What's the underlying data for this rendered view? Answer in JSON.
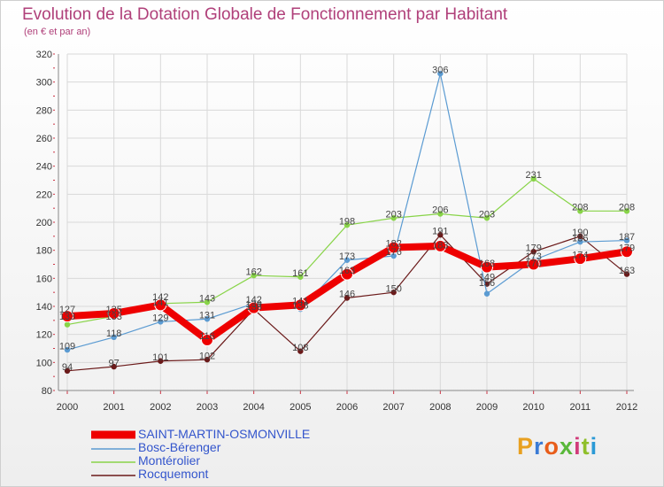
{
  "header": {
    "title": "Evolution de la Dotation Globale de Fonctionnement par Habitant",
    "subtitle": "(en € et par an)"
  },
  "brand": {
    "text": "Proxiti",
    "letter_colors": [
      "#e8a020",
      "#3a7bd5",
      "#e85d1a",
      "#59b83a",
      "#d13b7a",
      "#8fbf2a",
      "#2b9ad6"
    ]
  },
  "chart_data": {
    "type": "line",
    "x": [
      "2000",
      "2001",
      "2002",
      "2003",
      "2004",
      "2005",
      "2006",
      "2007",
      "2008",
      "2009",
      "2010",
      "2011",
      "2012"
    ],
    "ylim": [
      80,
      320
    ],
    "yticks": [
      "80",
      "100",
      "120",
      "140",
      "160",
      "180",
      "200",
      "220",
      "240",
      "260",
      "280",
      "300",
      "320"
    ],
    "grid": true,
    "series": [
      {
        "name": "Rocquemont",
        "color": "#6b1a1a",
        "width": 1.2,
        "marker": true,
        "values": [
          94,
          97,
          101,
          102,
          138,
          108,
          146,
          150,
          191,
          156,
          179,
          190,
          163
        ]
      },
      {
        "name": "Montérolier",
        "color": "#88d448",
        "width": 1.2,
        "marker": true,
        "values": [
          127,
          133,
          142,
          143,
          162,
          161,
          198,
          203,
          206,
          203,
          231,
          208,
          208
        ]
      },
      {
        "name": "Bosc-Bérenger",
        "color": "#5b9bd2",
        "width": 1.2,
        "marker": true,
        "values": [
          109,
          118,
          129,
          131,
          142,
          138,
          173,
          176,
          306,
          149,
          173,
          186,
          187
        ]
      },
      {
        "name": "SAINT-MARTIN-OSMONVILLE",
        "color": "#ee0000",
        "width": 8,
        "marker": true,
        "values": [
          133,
          135,
          141,
          116,
          139,
          141,
          163,
          182,
          183,
          168,
          170,
          174,
          179
        ]
      }
    ],
    "data_labels": [
      {
        "x": "2000",
        "text": "133",
        "dy": 128
      },
      {
        "x": "2000",
        "text": "127",
        "dy": 133
      },
      {
        "x": "2000",
        "text": "109",
        "dy": 107
      },
      {
        "x": "2000",
        "text": "94",
        "dy": 92
      },
      {
        "x": "2001",
        "text": "135",
        "dy": 133
      },
      {
        "x": "2001",
        "text": "133",
        "dy": 128
      },
      {
        "x": "2001",
        "text": "118",
        "dy": 116
      },
      {
        "x": "2001",
        "text": "97",
        "dy": 95
      },
      {
        "x": "2002",
        "text": "141",
        "dy": 138
      },
      {
        "x": "2002",
        "text": "142",
        "dy": 142
      },
      {
        "x": "2002",
        "text": "129",
        "dy": 127
      },
      {
        "x": "2002",
        "text": "101",
        "dy": 99
      },
      {
        "x": "2003",
        "text": "143",
        "dy": 141
      },
      {
        "x": "2003",
        "text": "131",
        "dy": 129
      },
      {
        "x": "2003",
        "text": "116",
        "dy": 114
      },
      {
        "x": "2003",
        "text": "102",
        "dy": 100
      },
      {
        "x": "2004",
        "text": "162",
        "dy": 160
      },
      {
        "x": "2004",
        "text": "142",
        "dy": 140
      },
      {
        "x": "2004",
        "text": "139",
        "dy": 137
      },
      {
        "x": "2004",
        "text": "138",
        "dy": 135
      },
      {
        "x": "2005",
        "text": "161",
        "dy": 159
      },
      {
        "x": "2005",
        "text": "141",
        "dy": 139
      },
      {
        "x": "2005",
        "text": "138",
        "dy": 136
      },
      {
        "x": "2005",
        "text": "108",
        "dy": 106
      },
      {
        "x": "2006",
        "text": "198",
        "dy": 196
      },
      {
        "x": "2006",
        "text": "173",
        "dy": 171
      },
      {
        "x": "2006",
        "text": "163",
        "dy": 161
      },
      {
        "x": "2006",
        "text": "146",
        "dy": 144
      },
      {
        "x": "2007",
        "text": "203",
        "dy": 201
      },
      {
        "x": "2007",
        "text": "182",
        "dy": 180
      },
      {
        "x": "2007",
        "text": "176",
        "dy": 174
      },
      {
        "x": "2007",
        "text": "150",
        "dy": 148
      },
      {
        "x": "2008",
        "text": "306",
        "dy": 304
      },
      {
        "x": "2008",
        "text": "206",
        "dy": 204
      },
      {
        "x": "2008",
        "text": "191",
        "dy": 189
      },
      {
        "x": "2008",
        "text": "183",
        "dy": 179
      },
      {
        "x": "2009",
        "text": "203",
        "dy": 201
      },
      {
        "x": "2009",
        "text": "168",
        "dy": 166
      },
      {
        "x": "2009",
        "text": "156",
        "dy": 152
      },
      {
        "x": "2009",
        "text": "149",
        "dy": 156
      },
      {
        "x": "2010",
        "text": "231",
        "dy": 229
      },
      {
        "x": "2010",
        "text": "179",
        "dy": 177
      },
      {
        "x": "2010",
        "text": "173",
        "dy": 171
      },
      {
        "x": "2010",
        "text": "170",
        "dy": 166
      },
      {
        "x": "2011",
        "text": "208",
        "dy": 206
      },
      {
        "x": "2011",
        "text": "190",
        "dy": 188
      },
      {
        "x": "2011",
        "text": "186",
        "dy": 184
      },
      {
        "x": "2011",
        "text": "174",
        "dy": 172
      },
      {
        "x": "2012",
        "text": "208",
        "dy": 206
      },
      {
        "x": "2012",
        "text": "187",
        "dy": 185
      },
      {
        "x": "2012",
        "text": "179",
        "dy": 177
      },
      {
        "x": "2012",
        "text": "163",
        "dy": 161
      }
    ]
  },
  "legend": {
    "items": [
      {
        "label": "SAINT-MARTIN-OSMONVILLE",
        "color": "#ee0000",
        "thick": true
      },
      {
        "label": "Bosc-Bérenger",
        "color": "#5b9bd2",
        "thick": false
      },
      {
        "label": "Montérolier",
        "color": "#88d448",
        "thick": false
      },
      {
        "label": "Rocquemont",
        "color": "#6b1a1a",
        "thick": false
      }
    ]
  }
}
